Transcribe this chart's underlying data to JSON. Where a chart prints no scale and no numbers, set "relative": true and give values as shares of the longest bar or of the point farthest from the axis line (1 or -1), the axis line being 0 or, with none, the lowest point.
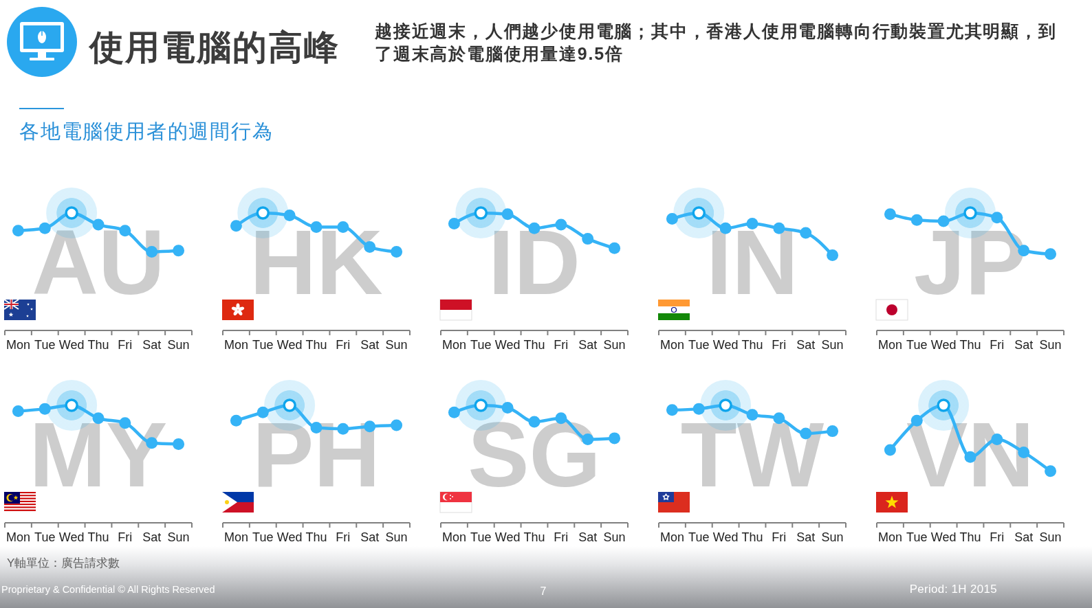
{
  "chart_data": [
    {
      "type": "other",
      "title": "使用電腦的高峰",
      "subtitle": "越接近週末，人們越少使用電腦；其中，香港人使用電腦轉向行動裝置尤其明顯，到了週末高於電腦使用量達9.5倍",
      "annotations": [
        "各地電腦使用者的週間行為",
        "Y軸單位：廣告請求數",
        "Proprietary & Confidential © All Rights Reserved",
        "7",
        "Period: 1H 2015"
      ]
    },
    {
      "type": "line",
      "title": "AU",
      "categories": [
        "Mon",
        "Tue",
        "Wed",
        "Thu",
        "Fri",
        "Sat",
        "Sun"
      ],
      "relative": true,
      "marker": "circle",
      "series": [
        {
          "color": "#35b3f6",
          "values": [
            0.85,
            0.87,
            1,
            0.9,
            0.85,
            0.67,
            0.68
          ]
        },
        {
          "type": "scatter",
          "color": "#0fa5ec",
          "x": [
            "Wed"
          ],
          "values": [
            1
          ]
        }
      ]
    },
    {
      "type": "line",
      "title": "HK",
      "categories": [
        "Mon",
        "Tue",
        "Wed",
        "Thu",
        "Fri",
        "Sat",
        "Sun"
      ],
      "relative": true,
      "marker": "circle",
      "series": [
        {
          "color": "#35b3f6",
          "values": [
            0.89,
            1,
            0.98,
            0.88,
            0.88,
            0.71,
            0.67
          ]
        },
        {
          "type": "scatter",
          "color": "#0fa5ec",
          "x": [
            "Tue"
          ],
          "values": [
            1
          ]
        }
      ]
    },
    {
      "type": "line",
      "title": "ID",
      "categories": [
        "Mon",
        "Tue",
        "Wed",
        "Thu",
        "Fri",
        "Sat",
        "Sun"
      ],
      "relative": true,
      "marker": "circle",
      "series": [
        {
          "color": "#35b3f6",
          "values": [
            0.91,
            1,
            0.99,
            0.87,
            0.9,
            0.78,
            0.7
          ]
        },
        {
          "type": "scatter",
          "color": "#0fa5ec",
          "x": [
            "Tue"
          ],
          "values": [
            1
          ]
        }
      ]
    },
    {
      "type": "line",
      "title": "IN",
      "categories": [
        "Mon",
        "Tue",
        "Wed",
        "Thu",
        "Fri",
        "Sat",
        "Sun"
      ],
      "relative": true,
      "marker": "circle",
      "series": [
        {
          "color": "#35b3f6",
          "values": [
            0.95,
            1,
            0.87,
            0.91,
            0.87,
            0.83,
            0.64
          ]
        },
        {
          "type": "scatter",
          "color": "#0fa5ec",
          "x": [
            "Tue"
          ],
          "values": [
            1
          ]
        }
      ]
    },
    {
      "type": "line",
      "title": "JP",
      "categories": [
        "Mon",
        "Tue",
        "Wed",
        "Thu",
        "Fri",
        "Sat",
        "Sun"
      ],
      "relative": true,
      "marker": "circle",
      "series": [
        {
          "color": "#35b3f6",
          "values": [
            0.99,
            0.94,
            0.93,
            1,
            0.96,
            0.68,
            0.65
          ]
        },
        {
          "type": "scatter",
          "color": "#0fa5ec",
          "x": [
            "Thu"
          ],
          "values": [
            1
          ]
        }
      ]
    },
    {
      "type": "line",
      "title": "MY",
      "categories": [
        "Mon",
        "Tue",
        "Wed",
        "Thu",
        "Fri",
        "Sat",
        "Sun"
      ],
      "relative": true,
      "marker": "circle",
      "series": [
        {
          "color": "#35b3f6",
          "values": [
            0.95,
            0.97,
            1,
            0.89,
            0.85,
            0.68,
            0.67
          ]
        },
        {
          "type": "scatter",
          "color": "#0fa5ec",
          "x": [
            "Wed"
          ],
          "values": [
            1
          ]
        }
      ]
    },
    {
      "type": "line",
      "title": "PH",
      "categories": [
        "Mon",
        "Tue",
        "Wed",
        "Thu",
        "Fri",
        "Sat",
        "Sun"
      ],
      "relative": true,
      "marker": "circle",
      "series": [
        {
          "color": "#35b3f6",
          "values": [
            0.87,
            0.94,
            1,
            0.81,
            0.8,
            0.82,
            0.83
          ]
        },
        {
          "type": "scatter",
          "color": "#0fa5ec",
          "x": [
            "Wed"
          ],
          "values": [
            1
          ]
        }
      ]
    },
    {
      "type": "line",
      "title": "SG",
      "categories": [
        "Mon",
        "Tue",
        "Wed",
        "Thu",
        "Fri",
        "Sat",
        "Sun"
      ],
      "relative": true,
      "marker": "circle",
      "series": [
        {
          "color": "#35b3f6",
          "values": [
            0.94,
            1,
            0.98,
            0.86,
            0.89,
            0.71,
            0.72
          ]
        },
        {
          "type": "scatter",
          "color": "#0fa5ec",
          "x": [
            "Tue"
          ],
          "values": [
            1
          ]
        }
      ]
    },
    {
      "type": "line",
      "title": "TW",
      "categories": [
        "Mon",
        "Tue",
        "Wed",
        "Thu",
        "Fri",
        "Sat",
        "Sun"
      ],
      "relative": true,
      "marker": "circle",
      "series": [
        {
          "color": "#35b3f6",
          "values": [
            0.96,
            0.97,
            1,
            0.92,
            0.89,
            0.76,
            0.78
          ]
        },
        {
          "type": "scatter",
          "color": "#0fa5ec",
          "x": [
            "Wed"
          ],
          "values": [
            1
          ]
        }
      ]
    },
    {
      "type": "line",
      "title": "VN",
      "categories": [
        "Mon",
        "Tue",
        "Wed",
        "Thu",
        "Fri",
        "Sat",
        "Sun"
      ],
      "relative": true,
      "marker": "circle",
      "series": [
        {
          "color": "#35b3f6",
          "values": [
            0.62,
            0.87,
            1,
            0.56,
            0.71,
            0.6,
            0.44
          ]
        },
        {
          "type": "scatter",
          "color": "#0fa5ec",
          "x": [
            "Wed"
          ],
          "values": [
            1
          ]
        }
      ]
    }
  ]
}
